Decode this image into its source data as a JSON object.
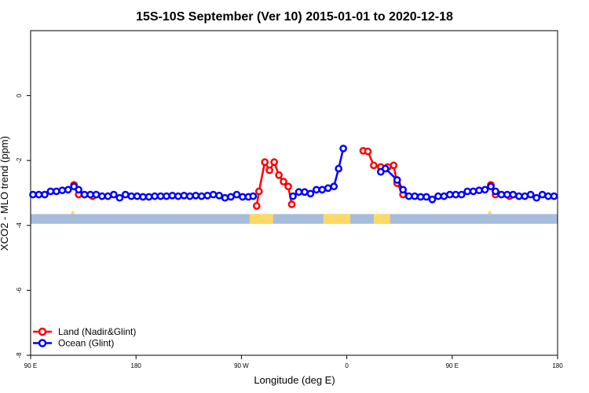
{
  "chart_data": {
    "type": "line",
    "title": "15S-10S September (Ver 10)   2015-01-01 to 2020-12-18",
    "xlabel": "Longitude (deg E)",
    "ylabel": "XCO2 - MLO trend (ppm)",
    "xlim": [
      90,
      540
    ],
    "ylim": [
      -8,
      2
    ],
    "xticks": [
      {
        "value": 90,
        "label": "90 E"
      },
      {
        "value": 180,
        "label": "180"
      },
      {
        "value": 270,
        "label": "90 W"
      },
      {
        "value": 360,
        "label": "0"
      },
      {
        "value": 450,
        "label": "90 E"
      },
      {
        "value": 540,
        "label": "180"
      }
    ],
    "yticks": [
      {
        "value": 0,
        "label": "0"
      },
      {
        "value": -2,
        "label": "-2"
      },
      {
        "value": -4,
        "label": "-4"
      },
      {
        "value": -6,
        "label": "-6"
      },
      {
        "value": -8,
        "label": "-8"
      }
    ],
    "legend_position": "bottom-left",
    "grid": false,
    "colors": {
      "land": "#ff0000",
      "ocean": "#0000ff",
      "land_mask": "#ffd966",
      "ocean_mask": "#a6bddb"
    },
    "mask_band": {
      "y_range": [
        -3.95,
        -3.65
      ],
      "land_longitudes": [
        [
          277,
          297
        ],
        [
          340,
          363
        ],
        [
          383,
          397
        ]
      ]
    },
    "series": [
      {
        "name": "Land (Nadir&Glint)",
        "key": "land",
        "segments": [
          [
            [
              127,
              -2.75
            ],
            [
              131,
              -3.05
            ],
            [
              143,
              -3.1
            ]
          ],
          [
            [
              283,
              -3.4
            ],
            [
              285,
              -2.95
            ],
            [
              290,
              -2.05
            ],
            [
              294,
              -2.3
            ],
            [
              298,
              -2.05
            ],
            [
              302,
              -2.45
            ],
            [
              306,
              -2.65
            ],
            [
              310,
              -2.8
            ],
            [
              313,
              -3.35
            ]
          ],
          [
            [
              374,
              -1.7
            ],
            [
              378,
              -1.72
            ],
            [
              383,
              -2.15
            ],
            [
              389,
              -2.2
            ],
            [
              395,
              -2.2
            ],
            [
              400,
              -2.15
            ],
            [
              403,
              -2.7
            ],
            [
              408,
              -3.05
            ]
          ],
          [
            [
              483,
              -2.75
            ],
            [
              487,
              -3.05
            ],
            [
              499,
              -3.1
            ]
          ]
        ]
      },
      {
        "name": "Ocean (Glint)",
        "key": "ocean",
        "segments": [
          [
            [
              92,
              -3.05
            ],
            [
              97,
              -3.05
            ],
            [
              102,
              -3.05
            ],
            [
              107,
              -2.95
            ],
            [
              112,
              -2.95
            ],
            [
              117,
              -2.92
            ],
            [
              122,
              -2.9
            ],
            [
              127,
              -2.8
            ],
            [
              131,
              -2.9
            ],
            [
              136,
              -3.05
            ],
            [
              141,
              -3.05
            ],
            [
              146,
              -3.05
            ],
            [
              151,
              -3.1
            ],
            [
              156,
              -3.1
            ],
            [
              161,
              -3.05
            ],
            [
              166,
              -3.15
            ],
            [
              171,
              -3.05
            ],
            [
              176,
              -3.1
            ],
            [
              181,
              -3.1
            ],
            [
              186,
              -3.12
            ],
            [
              191,
              -3.12
            ],
            [
              196,
              -3.1
            ],
            [
              201,
              -3.1
            ],
            [
              206,
              -3.1
            ],
            [
              211,
              -3.08
            ],
            [
              216,
              -3.1
            ],
            [
              221,
              -3.08
            ],
            [
              226,
              -3.1
            ],
            [
              231,
              -3.08
            ],
            [
              236,
              -3.1
            ],
            [
              241,
              -3.08
            ],
            [
              246,
              -3.05
            ],
            [
              251,
              -3.08
            ],
            [
              256,
              -3.15
            ],
            [
              261,
              -3.12
            ],
            [
              266,
              -3.05
            ],
            [
              271,
              -3.12
            ],
            [
              276,
              -3.12
            ],
            [
              280,
              -3.1
            ]
          ],
          [
            [
              314,
              -3.1
            ],
            [
              319,
              -2.97
            ],
            [
              324,
              -2.97
            ],
            [
              329,
              -3.02
            ],
            [
              334,
              -2.9
            ],
            [
              339,
              -2.9
            ],
            [
              344,
              -2.85
            ],
            [
              349,
              -2.8
            ],
            [
              353,
              -2.25
            ],
            [
              357,
              -1.63
            ]
          ],
          [
            [
              389,
              -2.35
            ],
            [
              393,
              -2.25
            ],
            [
              403,
              -2.6
            ],
            [
              408,
              -2.9
            ],
            [
              413,
              -3.1
            ],
            [
              418,
              -3.1
            ],
            [
              423,
              -3.12
            ],
            [
              428,
              -3.12
            ],
            [
              433,
              -3.2
            ],
            [
              438,
              -3.1
            ],
            [
              443,
              -3.1
            ],
            [
              448,
              -3.05
            ],
            [
              453,
              -3.05
            ],
            [
              458,
              -3.05
            ],
            [
              463,
              -2.95
            ],
            [
              468,
              -2.95
            ],
            [
              473,
              -2.92
            ],
            [
              478,
              -2.9
            ],
            [
              483,
              -2.8
            ],
            [
              487,
              -2.95
            ],
            [
              492,
              -3.05
            ],
            [
              497,
              -3.05
            ],
            [
              502,
              -3.05
            ],
            [
              507,
              -3.1
            ],
            [
              512,
              -3.1
            ],
            [
              517,
              -3.05
            ],
            [
              522,
              -3.15
            ],
            [
              527,
              -3.05
            ],
            [
              532,
              -3.1
            ],
            [
              537,
              -3.1
            ]
          ]
        ]
      }
    ]
  }
}
